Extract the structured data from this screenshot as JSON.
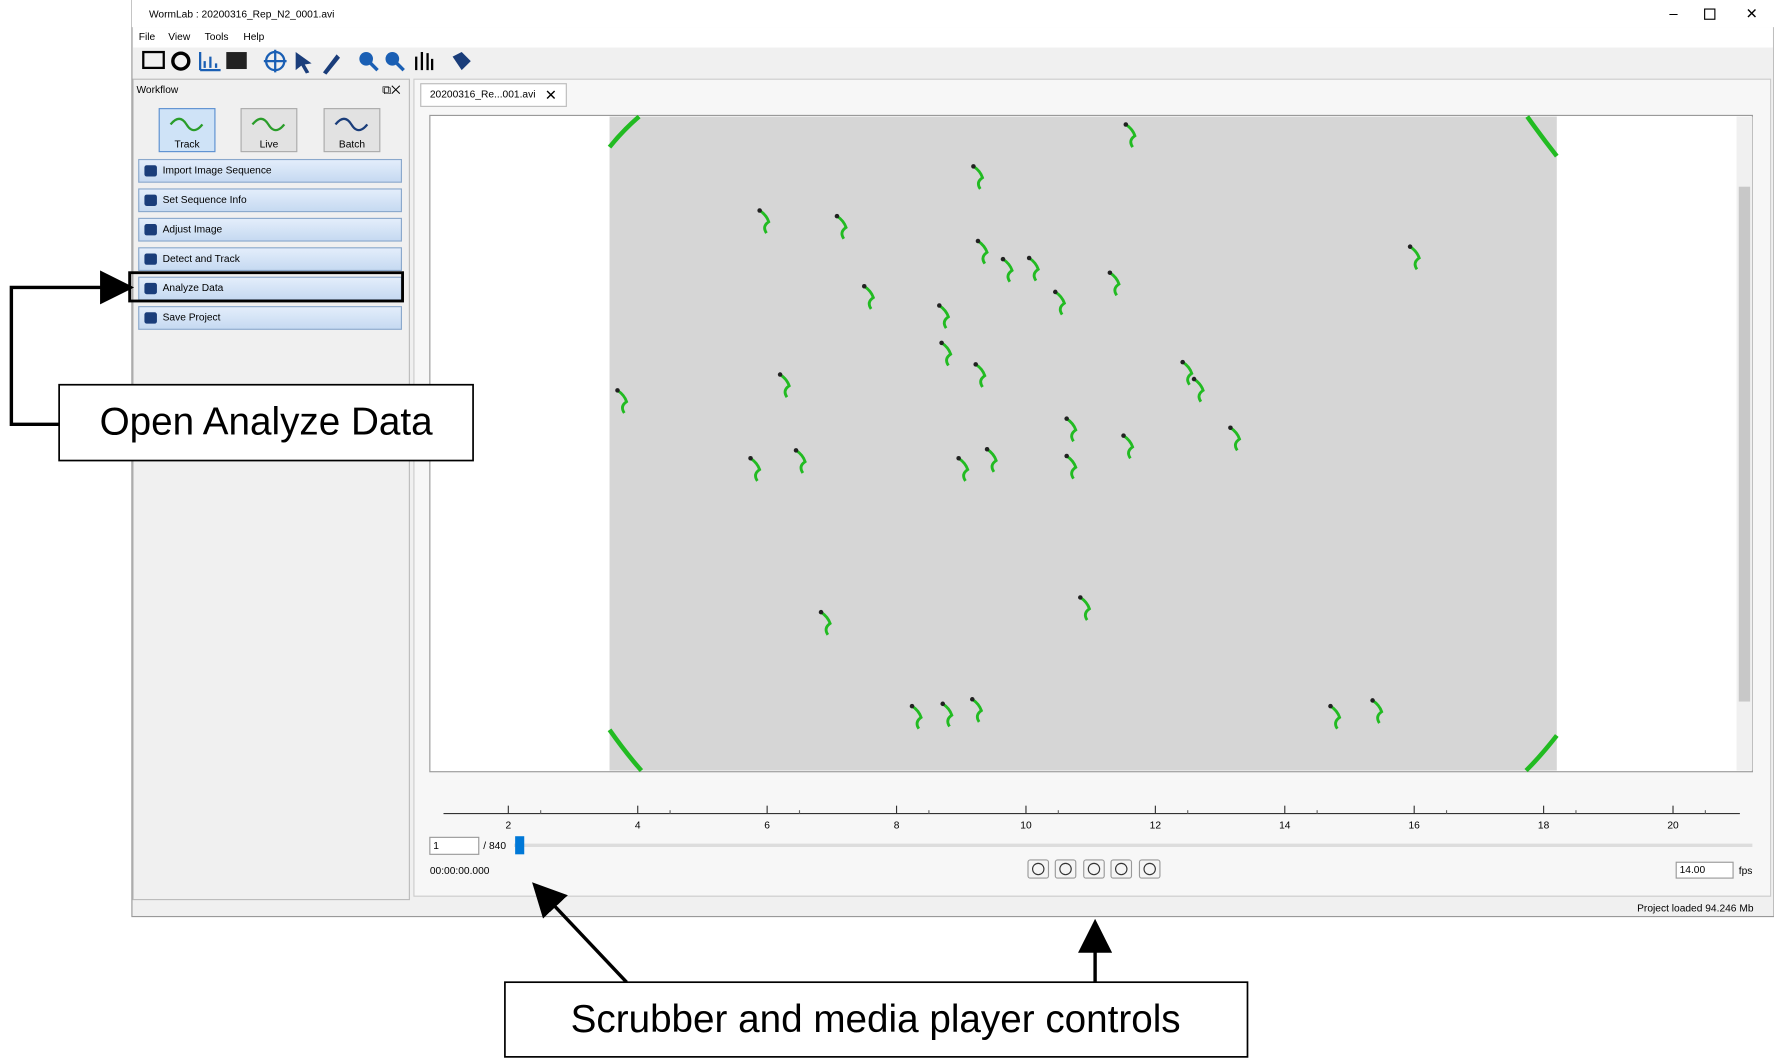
{
  "window": {
    "title": "WormLab : 20200316_Rep_N2_0001.avi"
  },
  "menu": [
    "File",
    "View",
    "Tools",
    "Help"
  ],
  "workflow": {
    "title": "Workflow",
    "modes": [
      "Track",
      "Live",
      "Batch"
    ],
    "steps": [
      "Import Image Sequence",
      "Set Sequence Info",
      "Adjust Image",
      "Detect and Track",
      "Analyze Data",
      "Save Project"
    ]
  },
  "tab": {
    "title": "20200316_Re...001.avi"
  },
  "timeline": {
    "ticks": [
      2,
      4,
      6,
      8,
      10,
      12,
      14,
      16,
      18,
      20
    ]
  },
  "player": {
    "frame": "1",
    "total": "/ 840",
    "time": "00:00:00.000",
    "fps": "14.00",
    "fps_unit": "fps"
  },
  "status": "Project loaded 94.246 Mb",
  "annotations": [
    "Open Analyze Data",
    "Scrubber and media player controls"
  ]
}
